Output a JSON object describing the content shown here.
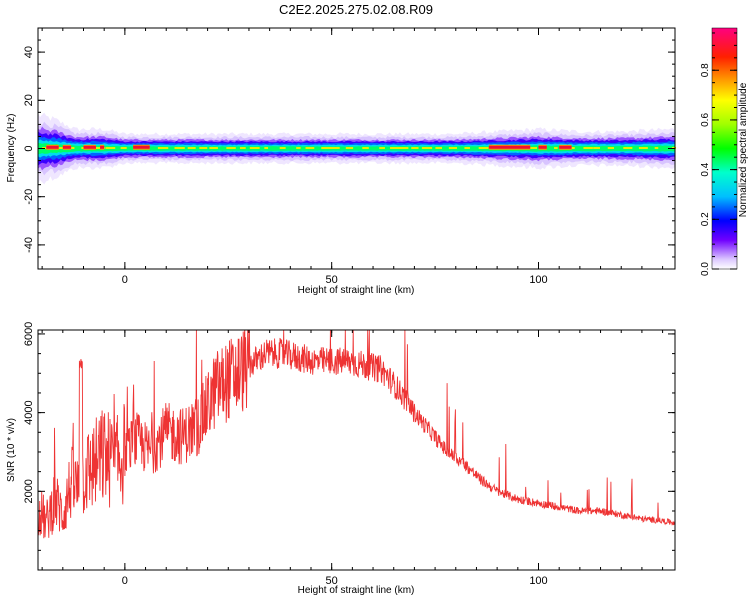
{
  "title": "C2E2.2025.275.02.08.R09",
  "chart_data": [
    {
      "type": "heatmap",
      "xlabel": "Height of straight line (km)",
      "ylabel": "Frequency (Hz)",
      "xlim": [
        -21,
        133
      ],
      "ylim": [
        -50,
        50
      ],
      "x_ticks": [
        0,
        50,
        100
      ],
      "y_ticks": [
        -40,
        -20,
        0,
        20,
        40
      ],
      "colorbar": {
        "label": "Normalized spectral amplitude",
        "range": [
          0,
          0.97
        ],
        "ticks": [
          0.0,
          0.2,
          0.4,
          0.6,
          0.8
        ]
      },
      "band_half_width_hz": [
        [
          -21,
          7
        ],
        [
          -17,
          6
        ],
        [
          -12,
          4
        ],
        [
          -5,
          4
        ],
        [
          0,
          3
        ],
        [
          10,
          3
        ],
        [
          20,
          3
        ],
        [
          40,
          3
        ],
        [
          60,
          3
        ],
        [
          80,
          3
        ],
        [
          90,
          3.5
        ],
        [
          100,
          4
        ],
        [
          110,
          3.5
        ],
        [
          120,
          3.5
        ],
        [
          133,
          4
        ]
      ],
      "hot_segments_km": [
        [
          -19,
          -16
        ],
        [
          -15,
          -13
        ],
        [
          -10,
          -7
        ],
        [
          -6,
          -5
        ],
        [
          2,
          6
        ],
        [
          88,
          98
        ],
        [
          100,
          102
        ],
        [
          105,
          108
        ]
      ]
    },
    {
      "type": "line",
      "xlabel": "Height of straight line (km)",
      "ylabel": "SNR (10 * v/v)",
      "xlim": [
        -21,
        133
      ],
      "ylim": [
        0,
        6100
      ],
      "x_ticks": [
        0,
        50,
        100
      ],
      "y_ticks": [
        2000,
        4000,
        6000
      ],
      "color": "#ee3333",
      "series": [
        {
          "x": [
            -21,
            -19,
            -17,
            -15,
            -13,
            -11,
            -10,
            -8,
            -5,
            -2,
            0,
            3,
            6,
            10,
            14,
            18,
            22,
            26,
            30,
            34,
            38,
            42,
            46,
            50,
            54,
            58,
            62,
            66,
            70,
            74,
            78,
            82,
            86,
            90,
            95,
            100,
            105,
            110,
            115,
            120,
            125,
            130,
            133
          ],
          "values": [
            1600,
            1200,
            1800,
            1400,
            2200,
            2000,
            2400,
            2600,
            2900,
            2700,
            3000,
            3300,
            3000,
            3500,
            3400,
            3700,
            4600,
            4900,
            5200,
            5500,
            5500,
            5400,
            5300,
            5300,
            5300,
            5200,
            5100,
            4600,
            4000,
            3500,
            3000,
            2700,
            2300,
            2000,
            1800,
            1700,
            1600,
            1500,
            1500,
            1400,
            1300,
            1250,
            1200
          ]
        }
      ]
    }
  ]
}
